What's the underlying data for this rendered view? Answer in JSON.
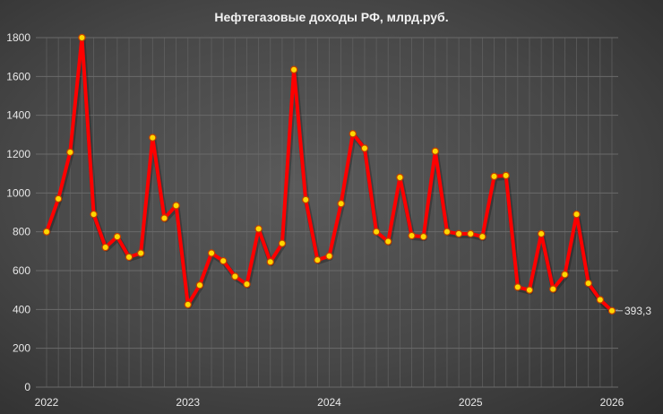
{
  "chart_data": {
    "type": "line",
    "title": "Нефтегазовые доходы РФ, млрд.руб.",
    "xlabel": "",
    "ylabel": "",
    "ylim": [
      0,
      1800
    ],
    "yticks": [
      0,
      200,
      400,
      600,
      800,
      1000,
      1200,
      1400,
      1600,
      1800
    ],
    "xticks": [
      "2022",
      "2023",
      "2024",
      "2025",
      "2026"
    ],
    "x_range": [
      "2022-01",
      "2026-01"
    ],
    "grid": true,
    "x": [
      "2022-01",
      "2022-02",
      "2022-03",
      "2022-04",
      "2022-05",
      "2022-06",
      "2022-07",
      "2022-08",
      "2022-09",
      "2022-10",
      "2022-11",
      "2022-12",
      "2023-01",
      "2023-02",
      "2023-03",
      "2023-04",
      "2023-05",
      "2023-06",
      "2023-07",
      "2023-08",
      "2023-09",
      "2023-10",
      "2023-11",
      "2023-12",
      "2024-01",
      "2024-02",
      "2024-03",
      "2024-04",
      "2024-05",
      "2024-06",
      "2024-07",
      "2024-08",
      "2024-09",
      "2024-10",
      "2024-11",
      "2024-12",
      "2025-01",
      "2025-02",
      "2025-03",
      "2025-04",
      "2025-05",
      "2025-06",
      "2025-07",
      "2025-08",
      "2025-09",
      "2025-10",
      "2025-11",
      "2025-12",
      "2026-01"
    ],
    "values": [
      800,
      970,
      1210,
      1800,
      890,
      720,
      775,
      670,
      690,
      1285,
      870,
      935,
      425,
      525,
      690,
      650,
      570,
      530,
      815,
      645,
      740,
      1635,
      965,
      655,
      675,
      945,
      1305,
      1230,
      800,
      750,
      1080,
      780,
      775,
      1215,
      800,
      790,
      790,
      775,
      1085,
      1090,
      515,
      500,
      790,
      505,
      580,
      890,
      535,
      450,
      393.3
    ],
    "last_label": "393,3",
    "colors": {
      "line": "#ff0000",
      "marker_fill": "#ffd700",
      "marker_edge": "#c04000",
      "background": "#474747",
      "grid": "#6a6a6a"
    }
  }
}
